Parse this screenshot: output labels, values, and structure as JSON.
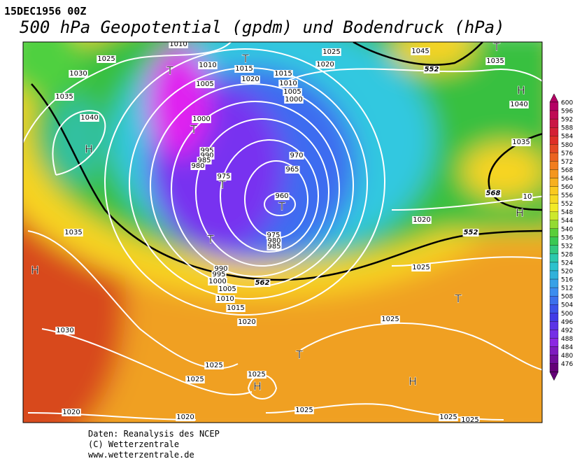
{
  "header": {
    "date": "15DEC1956 00Z",
    "title": "500 hPa Geopotential (gpdm) und Bodendruck (hPa)"
  },
  "legend": {
    "labels": [
      600,
      596,
      592,
      588,
      584,
      580,
      576,
      572,
      568,
      564,
      560,
      556,
      552,
      548,
      544,
      540,
      536,
      532,
      528,
      524,
      520,
      516,
      512,
      508,
      504,
      500,
      496,
      492,
      488,
      484,
      480,
      476
    ]
  },
  "map": {
    "isobar_labels": [
      "1025",
      "1030",
      "1035",
      "1040",
      "1010",
      "1010",
      "1005",
      "1000",
      "1015",
      "1020",
      "1015",
      "1010",
      "1005",
      "1000",
      "995",
      "990",
      "985",
      "980",
      "975",
      "970",
      "965",
      "960",
      "975",
      "980",
      "985",
      "990",
      "995",
      "1000",
      "1005",
      "1010",
      "1015",
      "1020",
      "1025",
      "1020",
      "1045",
      "1035",
      "1040",
      "1035",
      "10",
      "1020",
      "1025",
      "1025",
      "1030",
      "1035",
      "1025",
      "1025",
      "1025",
      "1020",
      "1020",
      "1025",
      "1025",
      "1025"
    ],
    "contour_labels": [
      "552",
      "562",
      "568",
      "552"
    ],
    "centers": [
      "T",
      "T",
      "T",
      "T",
      "T",
      "T",
      "T",
      "H",
      "H",
      "H",
      "H",
      "T",
      "T",
      "H",
      "H"
    ]
  },
  "footer": {
    "lines": [
      "Daten: Reanalysis des NCEP",
      "(C) Wetterzentrale",
      "www.wetterzentrale.de"
    ]
  }
}
